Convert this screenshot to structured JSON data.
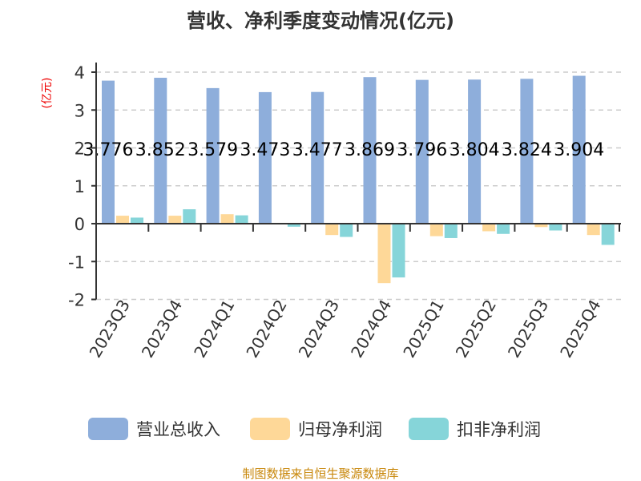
{
  "chart_data": {
    "type": "bar",
    "title": "营收、净利季度变动情况(亿元)",
    "ylabel": "(亿元)",
    "ylim": [
      -2,
      4
    ],
    "yticks": [
      4,
      3,
      2,
      1,
      0,
      -1,
      -2
    ],
    "grid": true,
    "legend_placement": "bottom",
    "categories": [
      "2023Q3",
      "2023Q4",
      "2024Q1",
      "2024Q2",
      "2024Q3",
      "2024Q4",
      "2025Q1",
      "2025Q2",
      "2025Q3",
      "2025Q4"
    ],
    "series": [
      {
        "name": "营业总收入",
        "color": "#8eaedb",
        "values": [
          3.776,
          3.852,
          3.579,
          3.473,
          3.477,
          3.869,
          3.796,
          3.804,
          3.824,
          3.904
        ],
        "labels": [
          "3.776",
          "3.852",
          "3.579",
          "3.473",
          "3.477",
          "3.869",
          "3.796",
          "3.804",
          "3.824",
          "3.904"
        ]
      },
      {
        "name": "归母净利润",
        "color": "#fed898",
        "values": [
          0.21,
          0.21,
          0.25,
          -0.01,
          -0.3,
          -1.57,
          -0.33,
          -0.2,
          -0.09,
          -0.3
        ]
      },
      {
        "name": "扣非净利润",
        "color": "#86d5d9",
        "values": [
          0.16,
          0.38,
          0.22,
          -0.08,
          -0.35,
          -1.42,
          -0.38,
          -0.27,
          -0.18,
          -0.56
        ]
      }
    ],
    "source": "制图数据来自恒生聚源数据库"
  }
}
